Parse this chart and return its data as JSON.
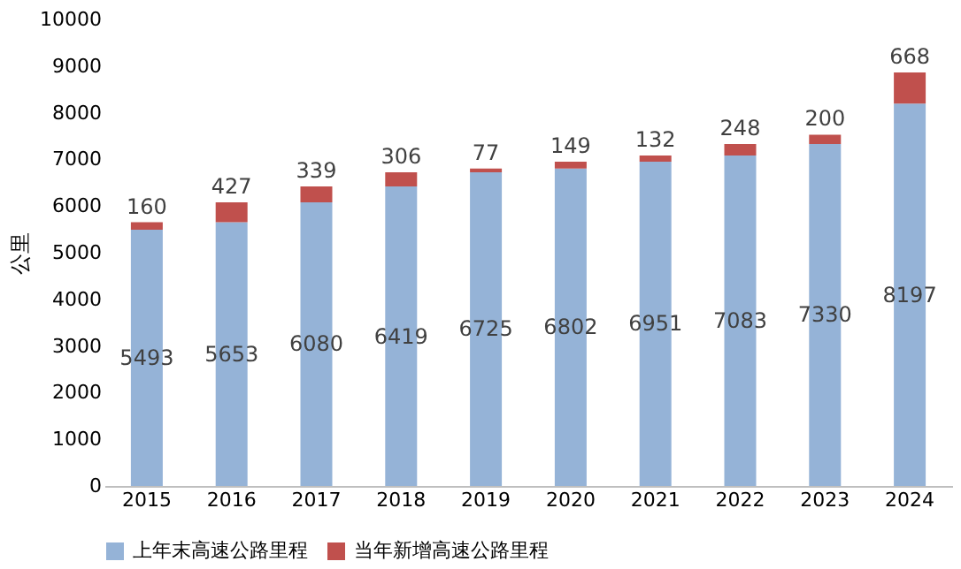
{
  "chart_data": {
    "type": "bar",
    "stacked": true,
    "ylabel": "公里",
    "categories": [
      "2015",
      "2016",
      "2017",
      "2018",
      "2019",
      "2020",
      "2021",
      "2022",
      "2023",
      "2024"
    ],
    "series": [
      {
        "name": "上年末高速公路里程",
        "color": "#95b3d7",
        "values": [
          5493,
          5653,
          6080,
          6419,
          6725,
          6802,
          6951,
          7083,
          7330,
          8197
        ]
      },
      {
        "name": "当年新增高速公路里程",
        "color": "#c0504d",
        "values": [
          160,
          427,
          339,
          306,
          77,
          149,
          132,
          248,
          200,
          668
        ]
      }
    ],
    "ylim": [
      0,
      10000
    ],
    "yticks": [
      0,
      1000,
      2000,
      3000,
      4000,
      5000,
      6000,
      7000,
      8000,
      9000,
      10000
    ],
    "grid": false,
    "legend": "bottom",
    "data_labels": true
  }
}
